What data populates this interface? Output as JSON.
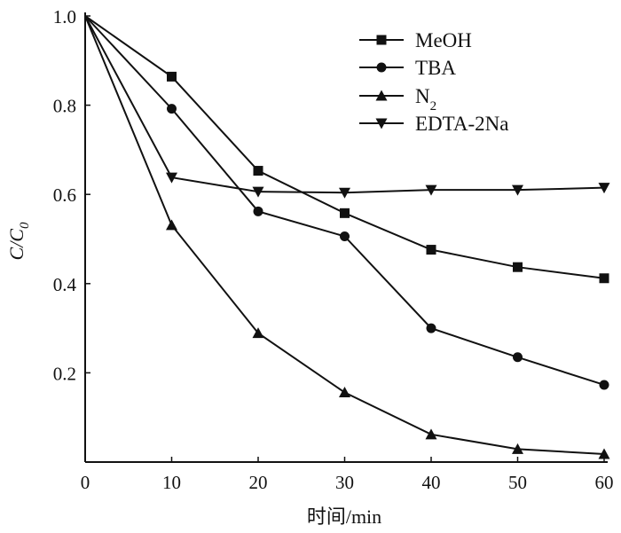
{
  "chart_data": {
    "type": "line",
    "title": "",
    "xlabel": "时间/min",
    "ylabel_main": "C/C",
    "ylabel_sub": "0",
    "xlim": [
      0,
      60
    ],
    "ylim": [
      0,
      1.0
    ],
    "xticks": [
      0,
      10,
      20,
      30,
      40,
      50,
      60
    ],
    "xtick_labels": [
      "0",
      "10",
      "20",
      "30",
      "40",
      "50",
      "60"
    ],
    "yticks": [
      0.2,
      0.4,
      0.6,
      0.8,
      1.0
    ],
    "ytick_labels": [
      "0.2",
      "0.4",
      "0.6",
      "0.8",
      "1.0"
    ],
    "grid": false,
    "legend_position": "top-right",
    "x": [
      0,
      10,
      20,
      30,
      40,
      50,
      60
    ],
    "series": [
      {
        "name": "MeOH",
        "name_sub": "",
        "marker": "square",
        "values": [
          1.0,
          0.864,
          0.653,
          0.558,
          0.476,
          0.437,
          0.412
        ]
      },
      {
        "name": "TBA",
        "name_sub": "",
        "marker": "circle",
        "values": [
          1.0,
          0.792,
          0.562,
          0.506,
          0.3,
          0.235,
          0.173
        ]
      },
      {
        "name": "N",
        "name_sub": "2",
        "marker": "triangle-up",
        "values": [
          1.0,
          0.531,
          0.289,
          0.156,
          0.062,
          0.029,
          0.018
        ]
      },
      {
        "name": "EDTA-2Na",
        "name_sub": "",
        "marker": "triangle-down",
        "values": [
          1.0,
          0.638,
          0.606,
          0.604,
          0.61,
          0.61,
          0.615
        ]
      }
    ],
    "color": "#111111"
  }
}
